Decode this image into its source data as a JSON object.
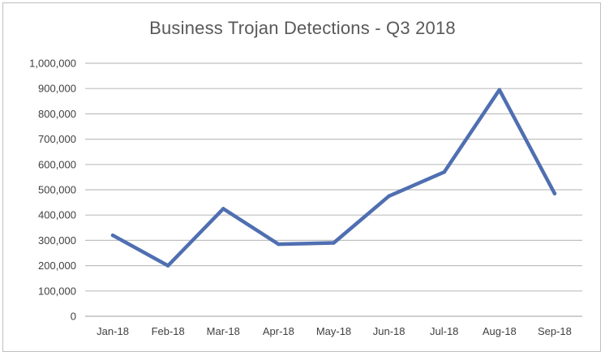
{
  "chart_data": {
    "type": "line",
    "title": "Business Trojan Detections - Q3 2018",
    "categories": [
      "Jan-18",
      "Feb-18",
      "Mar-18",
      "Apr-18",
      "May-18",
      "Jun-18",
      "Jul-18",
      "Aug-18",
      "Sep-18"
    ],
    "series": [
      {
        "values": [
          320000,
          200000,
          425000,
          285000,
          290000,
          475000,
          570000,
          895000,
          485000
        ]
      }
    ],
    "yticks": [
      "0",
      "100,000",
      "200,000",
      "300,000",
      "400,000",
      "500,000",
      "600,000",
      "700,000",
      "800,000",
      "900,000",
      "1,000,000"
    ],
    "ylim": [
      0,
      1000000
    ],
    "grid": true,
    "legend": "none",
    "colors": {
      "line": "#4f6fb1",
      "grid": "#bfbfbf",
      "text": "#404040"
    }
  }
}
